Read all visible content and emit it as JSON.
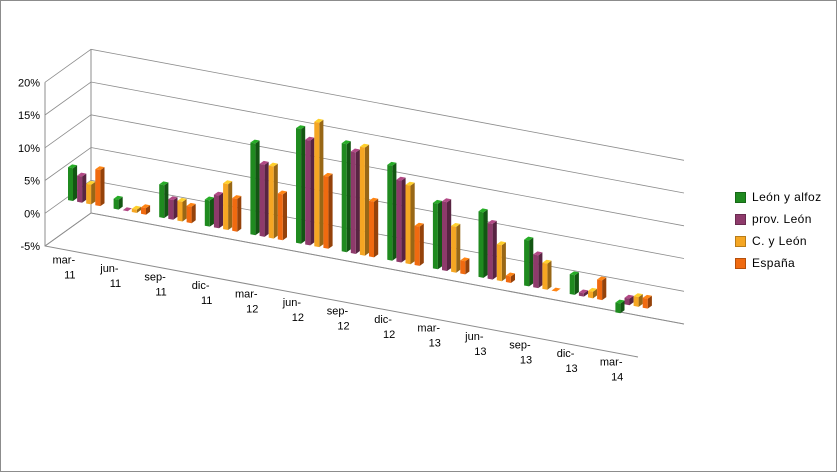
{
  "chart_data": {
    "type": "bar",
    "title": "",
    "xlabel": "",
    "ylabel": "",
    "ylim": [
      -5,
      20
    ],
    "yticks": [
      "-5%",
      "0%",
      "5%",
      "10%",
      "15%",
      "20%"
    ],
    "grid": true,
    "legend_position": "right",
    "categories": [
      [
        "mar-",
        "11"
      ],
      [
        "jun-",
        "11"
      ],
      [
        "sep-",
        "11"
      ],
      [
        "dic-",
        "11"
      ],
      [
        "mar-",
        "12"
      ],
      [
        "jun-",
        "12"
      ],
      [
        "sep-",
        "12"
      ],
      [
        "dic-",
        "12"
      ],
      [
        "mar-",
        "13"
      ],
      [
        "jun-",
        "13"
      ],
      [
        "sep-",
        "13"
      ],
      [
        "dic-",
        "13"
      ],
      [
        "mar-",
        "14"
      ]
    ],
    "series": [
      {
        "name": "León y alfoz",
        "color": "#1f8a1f",
        "values": [
          5,
          1.5,
          5,
          4,
          14,
          17.5,
          16.5,
          14.5,
          10,
          10,
          7,
          3,
          -1.5
        ]
      },
      {
        "name": "prov. León",
        "color": "#8e3a6b",
        "values": [
          4,
          0,
          3,
          5,
          11,
          16,
          15.5,
          12.5,
          10.5,
          8.5,
          5,
          0.5,
          1
        ]
      },
      {
        "name": "C. y León",
        "color": "#f5a623",
        "values": [
          3,
          0.5,
          3,
          7,
          11,
          19,
          16.5,
          12,
          7,
          5.5,
          4,
          1,
          1.5
        ]
      },
      {
        "name": "España",
        "color": "#f06a10",
        "values": [
          5.5,
          1,
          2.5,
          5,
          7,
          11,
          8.5,
          6,
          2,
          1,
          0,
          3,
          1.5
        ]
      }
    ]
  }
}
